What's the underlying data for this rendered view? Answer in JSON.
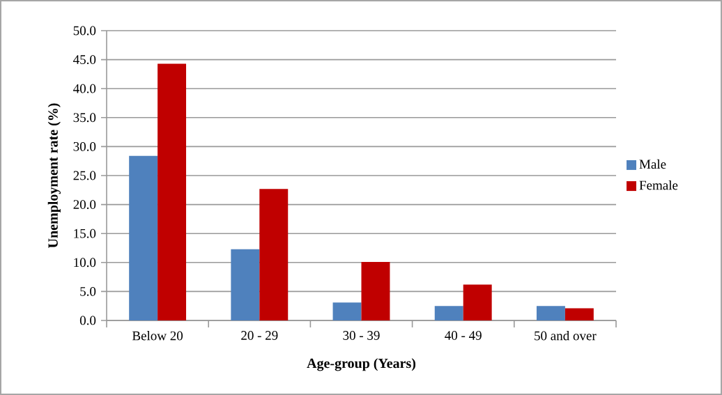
{
  "chart_data": {
    "type": "bar",
    "xlabel": "Age-group (Years)",
    "ylabel": "Unemployment rate (%)",
    "categories": [
      "Below 20",
      "20 - 29",
      "30 - 39",
      "40 - 49",
      "50 and over"
    ],
    "series": [
      {
        "name": "Male",
        "color": "#4f81bd",
        "values": [
          28.4,
          12.3,
          3.1,
          2.5,
          2.5
        ]
      },
      {
        "name": "Female",
        "color": "#c00000",
        "values": [
          44.3,
          22.7,
          10.1,
          6.2,
          2.1
        ]
      }
    ],
    "ylim": [
      0,
      50
    ],
    "yticks": [
      {
        "value": 0,
        "label": "0.0"
      },
      {
        "value": 5,
        "label": "5.0"
      },
      {
        "value": 10,
        "label": "10.0"
      },
      {
        "value": 15,
        "label": "15.0"
      },
      {
        "value": 20,
        "label": "20.0"
      },
      {
        "value": 25,
        "label": "25.0"
      },
      {
        "value": 30,
        "label": "30.0"
      },
      {
        "value": 35,
        "label": "35.0"
      },
      {
        "value": 40,
        "label": "40.0"
      },
      {
        "value": 45,
        "label": "45.0"
      },
      {
        "value": 50,
        "label": "50.0"
      }
    ],
    "grid": "y",
    "legend": "right"
  }
}
